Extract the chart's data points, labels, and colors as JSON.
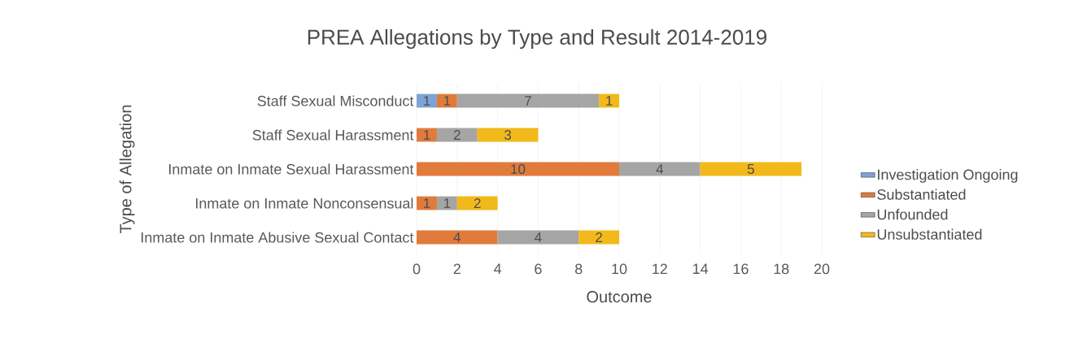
{
  "chart_data": {
    "type": "bar",
    "orientation": "horizontal",
    "stacked": true,
    "title": "PREA Allegations by Type and Result 2014-2019",
    "xlabel": "Outcome",
    "ylabel": "Type of Allegation",
    "categories": [
      "Staff Sexual Misconduct",
      "Staff Sexual Harassment",
      "Inmate on Inmate Sexual Harassment",
      "Inmate on Inmate Nonconsensual",
      "Inmate on Inmate Abusive Sexual Contact"
    ],
    "series": [
      {
        "name": "Investigation Ongoing",
        "color": "#7ea3d6",
        "values": [
          1,
          null,
          null,
          null,
          null
        ]
      },
      {
        "name": "Substantiated",
        "color": "#e07b3c",
        "values": [
          1,
          1,
          10,
          1,
          4
        ]
      },
      {
        "name": "Unfounded",
        "color": "#a5a5a5",
        "values": [
          7,
          2,
          4,
          1,
          4
        ]
      },
      {
        "name": "Unsubstantiated",
        "color": "#f2b91a",
        "values": [
          1,
          3,
          5,
          2,
          2
        ]
      }
    ],
    "xlim": [
      0,
      20
    ],
    "xticks": [
      0,
      2,
      4,
      6,
      8,
      10,
      12,
      14,
      16,
      18,
      20
    ],
    "grid": "x",
    "legend": "right",
    "data_labels": true
  }
}
